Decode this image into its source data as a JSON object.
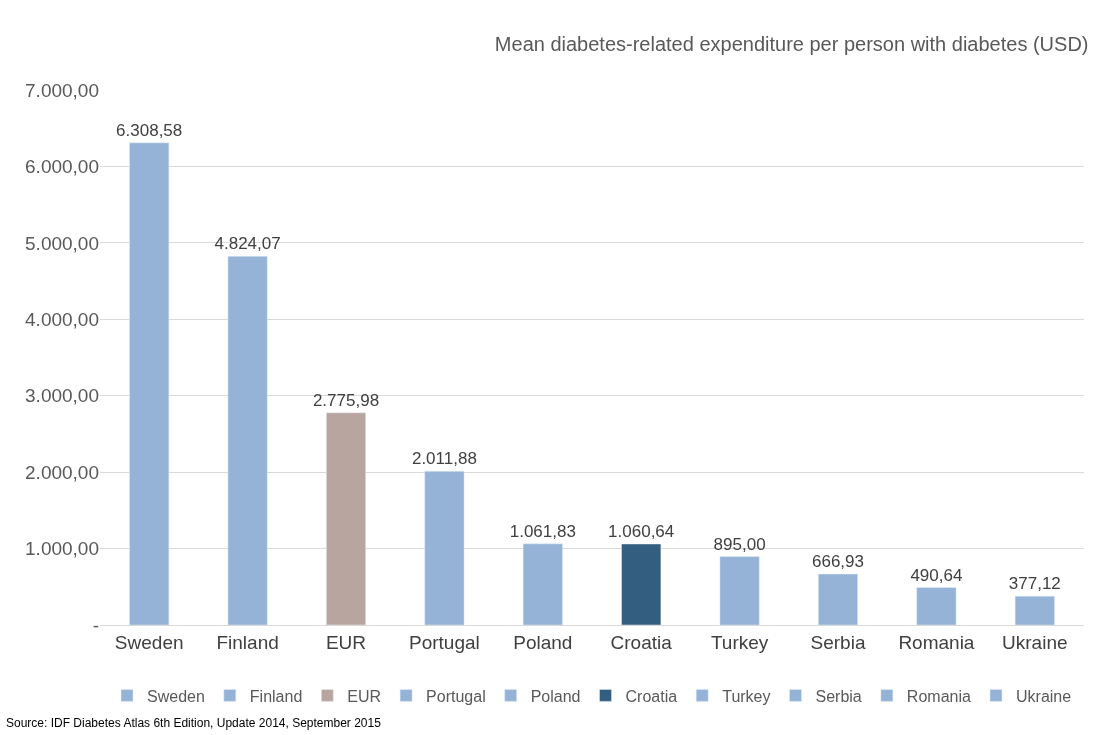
{
  "chart_data": {
    "type": "bar",
    "title": "Mean diabetes-related expenditure per person with diabetes (USD)",
    "categories": [
      "Sweden",
      "Finland",
      "EUR",
      "Portugal",
      "Poland",
      "Croatia",
      "Turkey",
      "Serbia",
      "Romania",
      "Ukraine"
    ],
    "series": [
      {
        "name": "Sweden",
        "color": "#95b3d7",
        "values": [
          6308.58,
          null,
          null,
          null,
          null,
          null,
          null,
          null,
          null,
          null
        ],
        "value_labels": [
          "6.308,58",
          null,
          null,
          null,
          null,
          null,
          null,
          null,
          null,
          null
        ]
      },
      {
        "name": "Finland",
        "color": "#95b3d7",
        "values": [
          null,
          4824.07,
          null,
          null,
          null,
          null,
          null,
          null,
          null,
          null
        ],
        "value_labels": [
          null,
          "4.824,07",
          null,
          null,
          null,
          null,
          null,
          null,
          null,
          null
        ]
      },
      {
        "name": "EUR",
        "color": "#b9a59f",
        "values": [
          null,
          null,
          2775.98,
          null,
          null,
          null,
          null,
          null,
          null,
          null
        ],
        "value_labels": [
          null,
          null,
          "2.775,98",
          null,
          null,
          null,
          null,
          null,
          null,
          null
        ]
      },
      {
        "name": "Portugal",
        "color": "#95b3d7",
        "values": [
          null,
          null,
          null,
          2011.88,
          null,
          null,
          null,
          null,
          null,
          null
        ],
        "value_labels": [
          null,
          null,
          null,
          "2.011,88",
          null,
          null,
          null,
          null,
          null,
          null
        ]
      },
      {
        "name": "Poland",
        "color": "#95b3d7",
        "values": [
          null,
          null,
          null,
          null,
          1061.83,
          null,
          null,
          null,
          null,
          null
        ],
        "value_labels": [
          null,
          null,
          null,
          null,
          "1.061,83",
          null,
          null,
          null,
          null,
          null
        ]
      },
      {
        "name": "Croatia",
        "color": "#345e80",
        "values": [
          null,
          null,
          null,
          null,
          null,
          1060.64,
          null,
          null,
          null,
          null
        ],
        "value_labels": [
          null,
          null,
          null,
          null,
          null,
          "1.060,64",
          null,
          null,
          null,
          null
        ]
      },
      {
        "name": "Turkey",
        "color": "#95b3d7",
        "values": [
          null,
          null,
          null,
          null,
          null,
          null,
          895.0,
          null,
          null,
          null
        ],
        "value_labels": [
          null,
          null,
          null,
          null,
          null,
          null,
          "895,00",
          null,
          null,
          null
        ]
      },
      {
        "name": "Serbia",
        "color": "#95b3d7",
        "values": [
          null,
          null,
          null,
          null,
          null,
          null,
          null,
          666.93,
          null,
          null
        ],
        "value_labels": [
          null,
          null,
          null,
          null,
          null,
          null,
          null,
          "666,93",
          null,
          null
        ]
      },
      {
        "name": "Romania",
        "color": "#95b3d7",
        "values": [
          null,
          null,
          null,
          null,
          null,
          null,
          null,
          null,
          490.64,
          null
        ],
        "value_labels": [
          null,
          null,
          null,
          null,
          null,
          null,
          null,
          null,
          "490,64",
          null
        ]
      },
      {
        "name": "Ukraine",
        "color": "#95b3d7",
        "values": [
          null,
          null,
          null,
          null,
          null,
          null,
          null,
          null,
          null,
          377.12
        ],
        "value_labels": [
          null,
          null,
          null,
          null,
          null,
          null,
          null,
          null,
          null,
          "377,12"
        ]
      }
    ],
    "ylim": [
      0,
      7000
    ],
    "yticks": [
      {
        "value": 0,
        "label": "-"
      },
      {
        "value": 1000,
        "label": "1.000,00"
      },
      {
        "value": 2000,
        "label": "2.000,00"
      },
      {
        "value": 3000,
        "label": "3.000,00"
      },
      {
        "value": 4000,
        "label": "4.000,00"
      },
      {
        "value": 5000,
        "label": "5.000,00"
      },
      {
        "value": 6000,
        "label": "6.000,00"
      },
      {
        "value": 7000,
        "label": "7.000,00"
      }
    ],
    "grid": "y",
    "legend": "bottom",
    "annotations": [
      "Source: IDF Diabetes Atlas 6th Edition, Update 2014, September 2015"
    ]
  }
}
